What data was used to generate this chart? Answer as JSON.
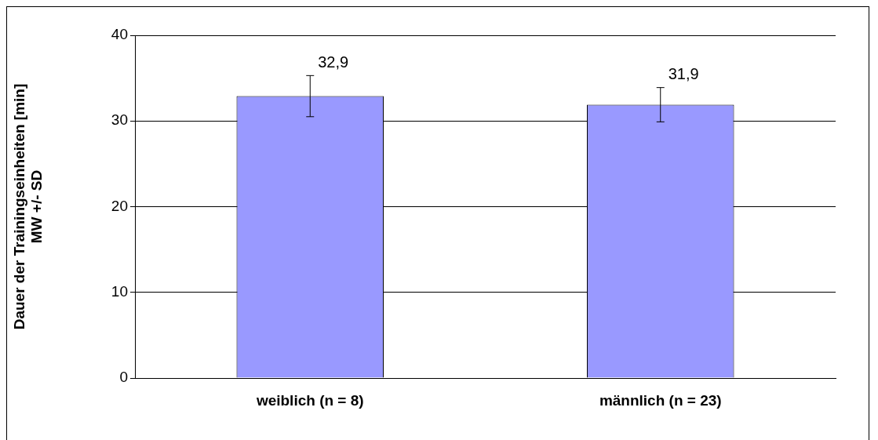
{
  "chart_data": {
    "type": "bar",
    "ylabel": "Dauer der Trainingseinheiten [min]\nMW +/- SD",
    "categories": [
      "weiblich (n = 8)",
      "männlich (n = 23)"
    ],
    "values": [
      32.9,
      31.9
    ],
    "errors": [
      2.4,
      2.0
    ],
    "value_labels": [
      "32,9",
      "31,9"
    ],
    "color": "#9999ff",
    "ylim": [
      0,
      40
    ],
    "yticks": [
      0,
      10,
      20,
      30,
      40
    ],
    "grid": "y",
    "legend": false
  }
}
